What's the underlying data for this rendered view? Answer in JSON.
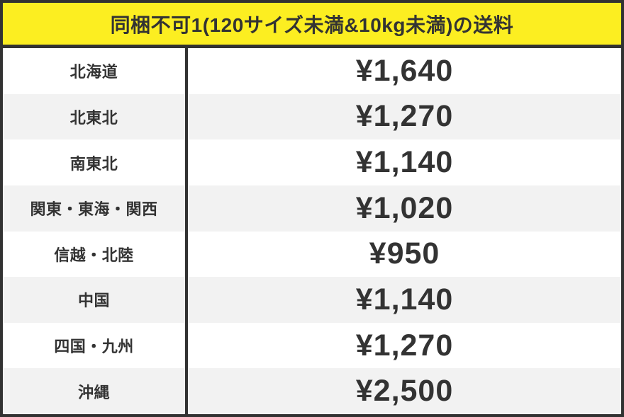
{
  "chart_data": {
    "type": "table",
    "title": "同梱不可1(120サイズ未満&10kg未満)の送料",
    "rows": [
      {
        "region": "北海道",
        "price": "¥1,640"
      },
      {
        "region": "北東北",
        "price": "¥1,270"
      },
      {
        "region": "南東北",
        "price": "¥1,140"
      },
      {
        "region": "関東・東海・関西",
        "price": "¥1,020"
      },
      {
        "region": "信越・北陸",
        "price": "¥950"
      },
      {
        "region": "中国",
        "price": "¥1,140"
      },
      {
        "region": "四国・九州",
        "price": "¥1,270"
      },
      {
        "region": "沖縄",
        "price": "¥2,500"
      }
    ],
    "layout": {
      "legend": false,
      "grid": false,
      "row_striping": "alternating"
    }
  },
  "colors": {
    "banner_bg": "#fcee21",
    "border": "#323232",
    "row_odd_bg": "#ffffff",
    "row_even_bg": "#f2f2f2",
    "text": "#333333"
  }
}
